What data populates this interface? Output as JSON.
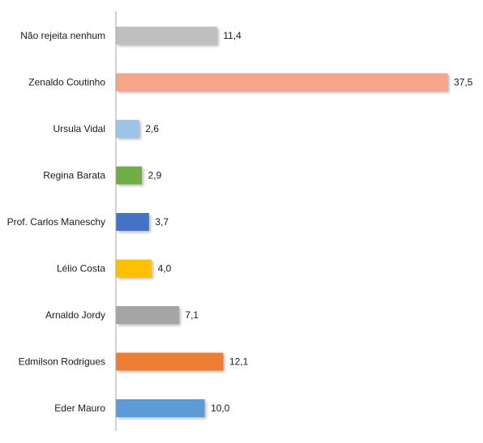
{
  "chart_data": {
    "type": "bar",
    "orientation": "horizontal",
    "title": "",
    "xlabel": "",
    "ylabel": "",
    "xlim": [
      0,
      37.5
    ],
    "grid": false,
    "legend": "none",
    "decimal_separator": ",",
    "categories": [
      "Não rejeita nenhum",
      "Zenaldo Coutinho",
      "Ursula Vidal",
      "Regina Barata",
      "Prof. Carlos Maneschy",
      "Lélio Costa",
      "Arnaldo Jordy",
      "Edmilson Rodrigues",
      "Eder Mauro"
    ],
    "values": [
      11.4,
      37.5,
      2.6,
      2.9,
      3.7,
      4.0,
      7.1,
      12.1,
      10.0
    ],
    "value_labels": [
      "11,4",
      "37,5",
      "2,6",
      "2,9",
      "3,7",
      "4,0",
      "7,1",
      "12,1",
      "10,0"
    ],
    "colors": [
      "#bfbfbf",
      "#f4a58a",
      "#9dc3e6",
      "#70ad47",
      "#4472c4",
      "#ffc000",
      "#a5a5a5",
      "#ed7d31",
      "#5b9bd5"
    ],
    "axis_color": "#a6a6a6"
  }
}
